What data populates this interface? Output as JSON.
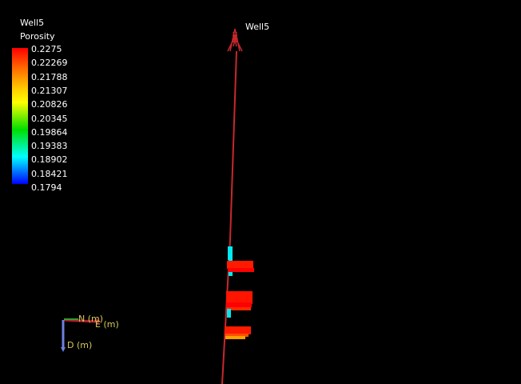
{
  "legend": {
    "well": "Well5",
    "property": "Porosity",
    "ticks": [
      "0.2275",
      "0.22269",
      "0.21788",
      "0.21307",
      "0.20826",
      "0.20345",
      "0.19864",
      "0.19383",
      "0.18902",
      "0.18421",
      "0.1794"
    ],
    "colors": {
      "max": "#ff0000",
      "mid": "#ffff00",
      "low": "#00ffff",
      "min": "#0000ff"
    }
  },
  "scene": {
    "well_label": "Well5",
    "well_color": "#c8282d",
    "axes": {
      "north": "N (m)",
      "east": "E (m)",
      "down": "D (m)"
    }
  }
}
